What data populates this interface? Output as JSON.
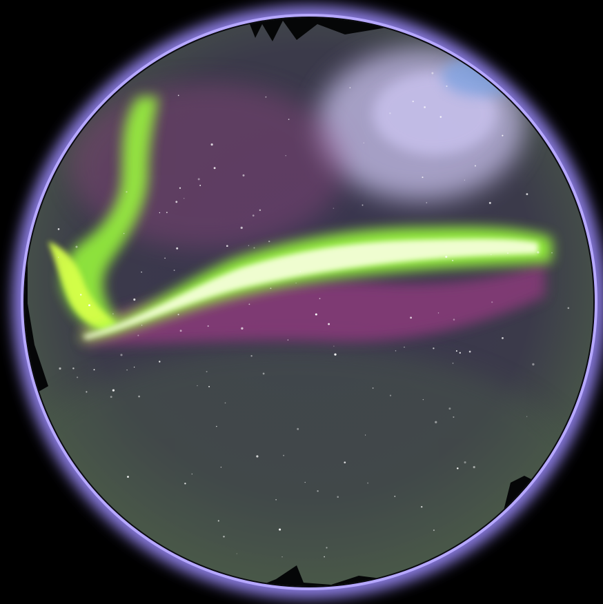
{
  "scene": {
    "subject": "aurora-all-sky",
    "colors": {
      "background": "#000000",
      "halo_outer": "#8a7ce0",
      "halo_inner": "#b6a8ff",
      "lens_rim": "#0a0a10",
      "sky_center": "#3a3550",
      "sky_edge": "#4a5a48",
      "cloud_glow": "#c9c2ee",
      "cloud_blue": "#7fa2e0",
      "aurora_core": "#f4ffd8",
      "aurora_green": "#9cff3a",
      "aurora_lime": "#d6ff4a",
      "aurora_purple": "#8a3a7a",
      "aurora_magenta": "#a04a8a",
      "treeline": "#050607",
      "star": "#ffffff"
    }
  }
}
